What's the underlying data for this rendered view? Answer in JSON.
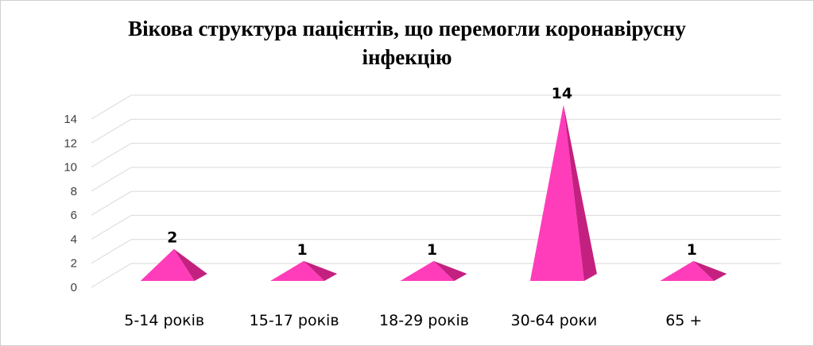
{
  "chart_data": {
    "type": "bar",
    "title": "Вікова структура пацієнтів, що перемогли коронавірусну інфекцію",
    "title_lines": [
      "Вікова структура  пацієнтів, що перемогли коронавірусну",
      "інфекцію"
    ],
    "categories": [
      "5-14 років",
      "15-17 років",
      "18-29 років",
      "30-64 роки",
      "65 +"
    ],
    "values": [
      2,
      1,
      1,
      14,
      1
    ],
    "data_labels": [
      "2",
      "1",
      "1",
      "14",
      "1"
    ],
    "ylim": [
      0,
      14
    ],
    "yticks": [
      "0",
      "2",
      "4",
      "6",
      "8",
      "10",
      "12",
      "14"
    ],
    "grid": true,
    "legend": "none",
    "colors": {
      "pyramid_front": "#ff3dbb",
      "pyramid_side": "#c4207f",
      "pyramid_light": "#ff66cc",
      "grid": "#d9d9d9"
    }
  }
}
